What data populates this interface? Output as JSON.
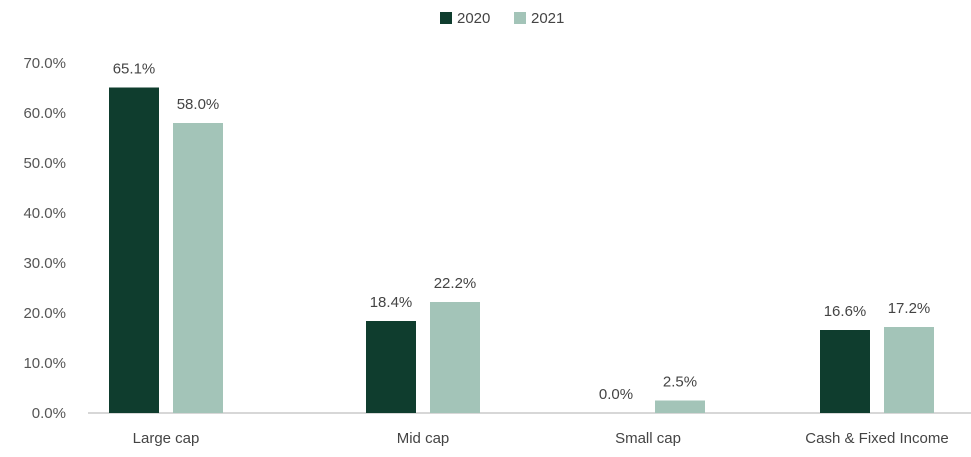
{
  "chart_data": {
    "type": "bar",
    "categories": [
      "Large cap",
      "Mid cap",
      "Small cap",
      "Cash & Fixed Income"
    ],
    "series": [
      {
        "name": "2020",
        "values": [
          65.1,
          18.4,
          0.0,
          16.6
        ],
        "labels": [
          "65.1%",
          "18.4%",
          "0.0%",
          "16.6%"
        ],
        "color": "#0f3d2e"
      },
      {
        "name": "2021",
        "values": [
          58.0,
          22.2,
          2.5,
          17.2
        ],
        "labels": [
          "58.0%",
          "22.2%",
          "2.5%",
          "17.2%"
        ],
        "color": "#a3c4b8"
      }
    ],
    "yticks": [
      "0.0%",
      "10.0%",
      "20.0%",
      "30.0%",
      "40.0%",
      "50.0%",
      "60.0%",
      "70.0%"
    ],
    "ylim": [
      0,
      70
    ],
    "grid": false,
    "legend_position": "top-center"
  }
}
